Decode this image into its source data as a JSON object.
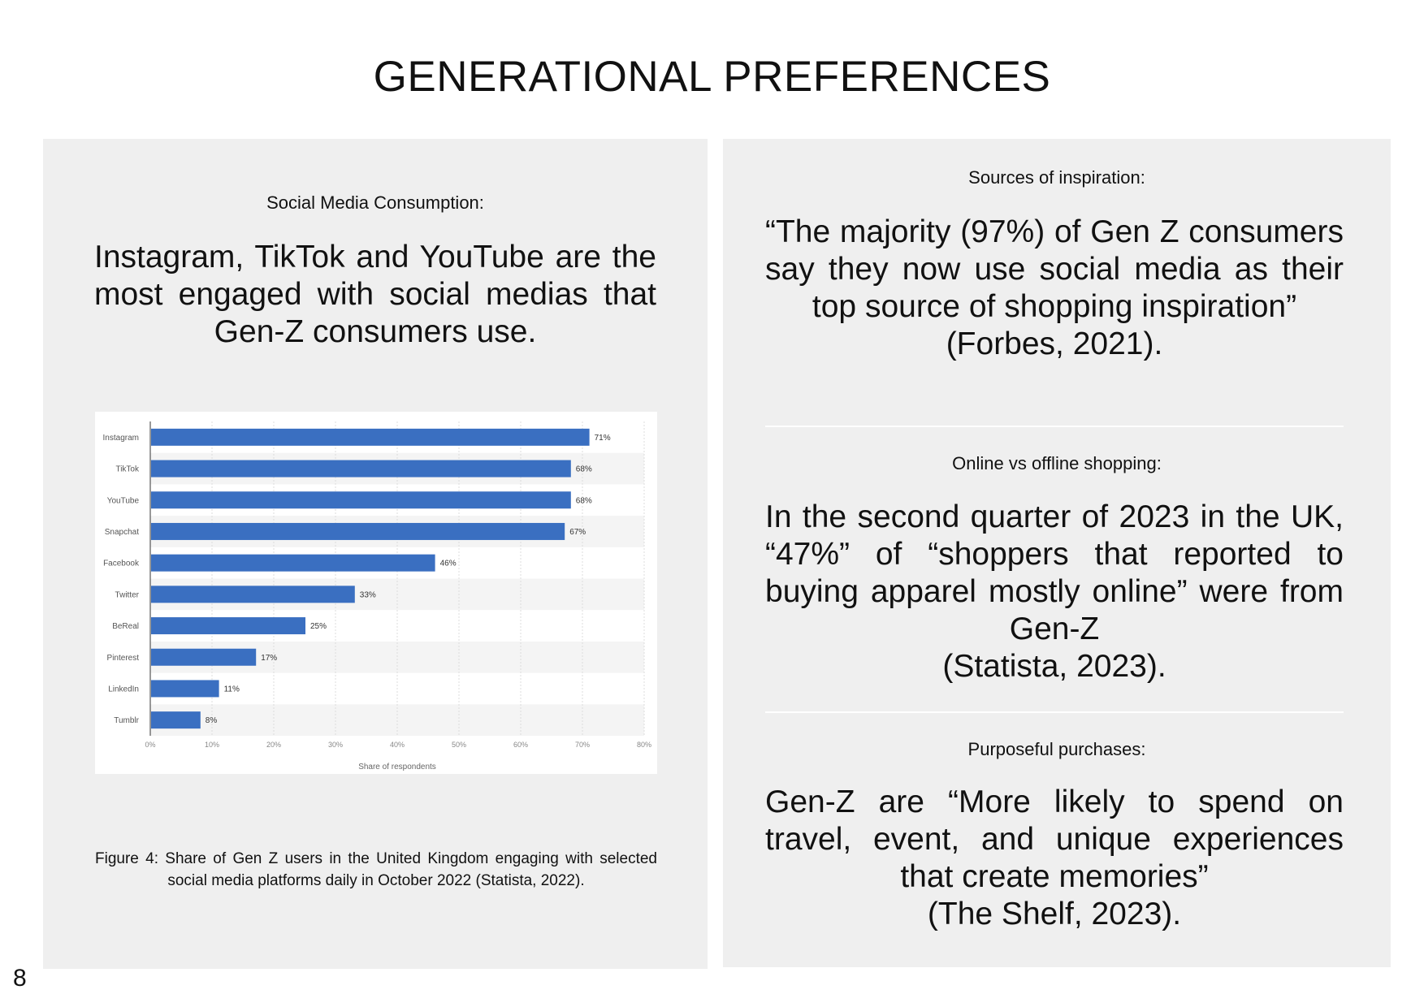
{
  "page": {
    "title": "GENERATIONAL PREFERENCES",
    "page_number": "8"
  },
  "left_panel": {
    "heading": "Social Media Consumption:",
    "statement": "Instagram, TikTok and YouTube are the most engaged with social medias that Gen-Z consumers use.",
    "caption": "Figure 4: Share of Gen Z users in the United Kingdom engaging with selected social media platforms daily in October 2022 (Statista, 2022)."
  },
  "right_panel": {
    "sections": [
      {
        "heading": "Sources of inspiration:",
        "quote": "“The majority (97%) of Gen Z consumers say they now use social media as their top source of shopping inspiration”",
        "citation": "(Forbes, 2021)."
      },
      {
        "heading": "Online vs offline shopping:",
        "quote": "In the second quarter of 2023 in the UK, “47%” of “shoppers that reported to buying apparel mostly online” were from Gen-Z",
        "citation": "(Statista, 2023)."
      },
      {
        "heading": "Purposeful purchases:",
        "quote": "Gen-Z are “More likely to spend on travel, event, and unique experiences that create memories”",
        "citation": "(The Shelf, 2023)."
      }
    ]
  },
  "colors": {
    "bar": "#3a6fc1",
    "panel": "#efefef",
    "stripe": "#f4f4f4"
  },
  "chart_data": {
    "type": "bar",
    "orientation": "horizontal",
    "categories": [
      "Instagram",
      "TikTok",
      "YouTube",
      "Snapchat",
      "Facebook",
      "Twitter",
      "BeReal",
      "Pinterest",
      "LinkedIn",
      "Tumblr"
    ],
    "values": [
      71,
      68,
      68,
      67,
      46,
      33,
      25,
      17,
      11,
      8
    ],
    "value_labels": [
      "71%",
      "68%",
      "68%",
      "67%",
      "46%",
      "33%",
      "25%",
      "17%",
      "11%",
      "8%"
    ],
    "xlabel": "Share of respondents",
    "xlim": [
      0,
      80
    ],
    "xticks": [
      "0%",
      "10%",
      "20%",
      "30%",
      "40%",
      "50%",
      "60%",
      "70%",
      "80%"
    ],
    "grid": true
  }
}
